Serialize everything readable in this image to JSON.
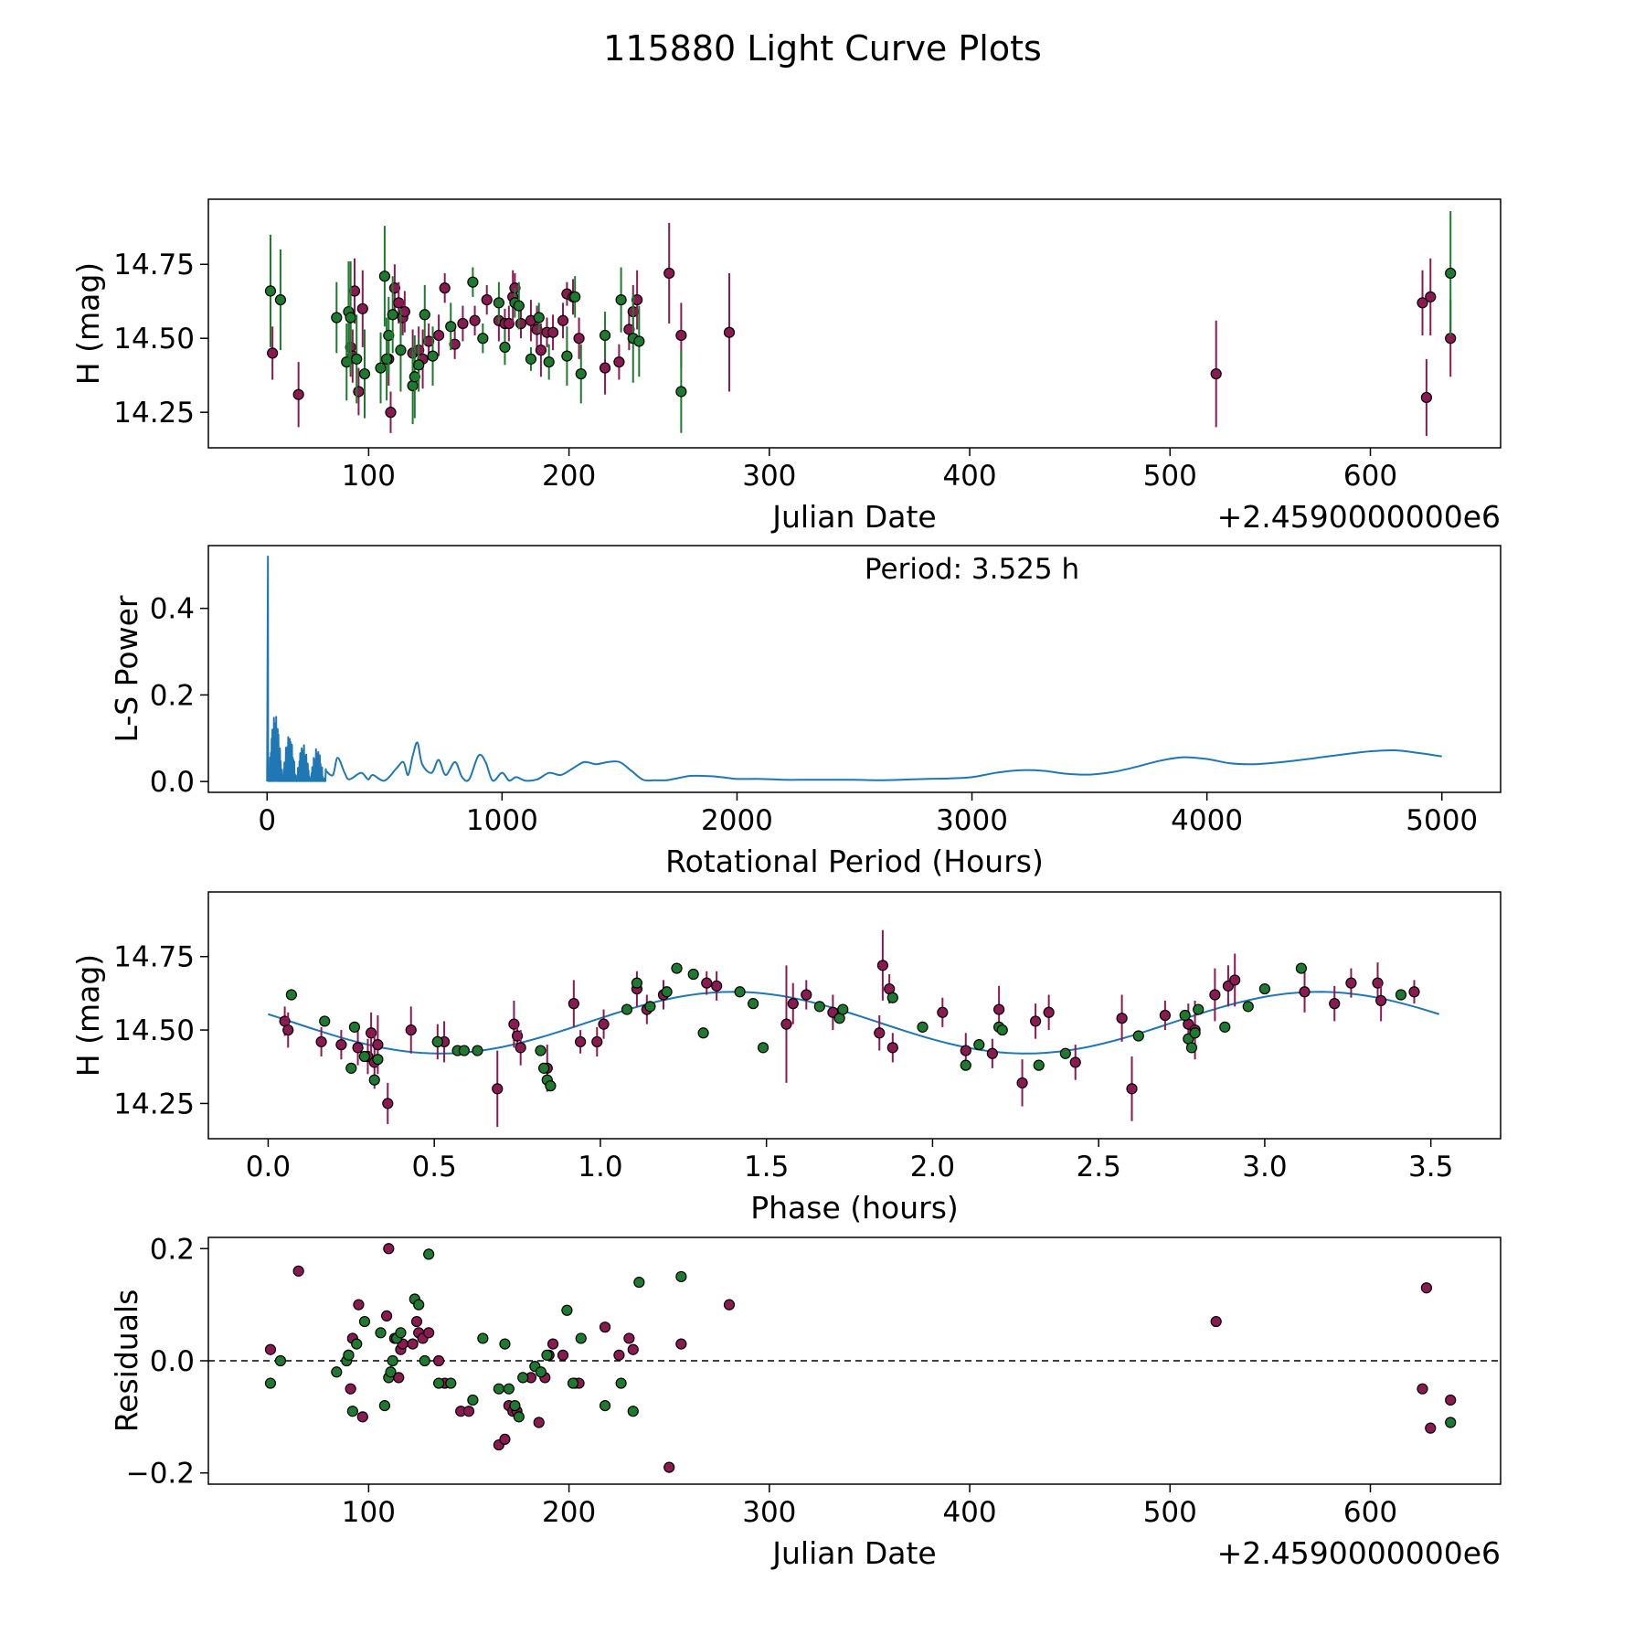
{
  "title": "115880 Light Curve Plots",
  "colors": {
    "series_a": "#8B1A52",
    "series_b": "#1E7A2E",
    "fit_line": "#1f77b4",
    "marker_edge": "#000000"
  },
  "chart_data": [
    {
      "id": "lightcurve",
      "type": "scatter",
      "xlabel": "Julian Date",
      "ylabel": "H (mag)",
      "offset_label": "+2.4590000000e6",
      "xlim": [
        20,
        665
      ],
      "ylim": [
        14.13,
        14.97
      ],
      "xticks": [
        100,
        200,
        300,
        400,
        500,
        600
      ],
      "yticks": [
        14.25,
        14.5,
        14.75
      ],
      "ytick_labels": [
        "14.25",
        "14.50",
        "14.75"
      ],
      "series": [
        {
          "name": "magenta",
          "color": "#8B1A52",
          "x": [
            52,
            65,
            91,
            92,
            93,
            95,
            97,
            110,
            111,
            113,
            115,
            117,
            118,
            122,
            125,
            127,
            130,
            135,
            138,
            143,
            147,
            153,
            159,
            165,
            168,
            170,
            172,
            173,
            176,
            181,
            184,
            186,
            189,
            192,
            197,
            199,
            202,
            205,
            218,
            225,
            230,
            232,
            234,
            250,
            256,
            280,
            523,
            626,
            628,
            630,
            640
          ],
          "y": [
            14.45,
            14.31,
            14.47,
            14.44,
            14.66,
            14.32,
            14.6,
            14.43,
            14.25,
            14.67,
            14.62,
            14.57,
            14.59,
            14.45,
            14.46,
            14.43,
            14.49,
            14.51,
            14.67,
            14.48,
            14.55,
            14.56,
            14.63,
            14.56,
            14.55,
            14.55,
            14.64,
            14.67,
            14.55,
            14.56,
            14.53,
            14.46,
            14.52,
            14.52,
            14.56,
            14.65,
            14.64,
            14.5,
            14.4,
            14.42,
            14.53,
            14.59,
            14.63,
            14.72,
            14.51,
            14.52,
            14.38,
            14.62,
            14.3,
            14.64,
            14.5
          ],
          "err": [
            0.09,
            0.11,
            0.1,
            0.09,
            0.11,
            0.08,
            0.13,
            0.09,
            0.07,
            0.08,
            0.07,
            0.06,
            0.07,
            0.08,
            0.08,
            0.1,
            0.06,
            0.07,
            0.05,
            0.05,
            0.06,
            0.05,
            0.05,
            0.07,
            0.05,
            0.06,
            0.09,
            0.05,
            0.05,
            0.07,
            0.08,
            0.09,
            0.05,
            0.06,
            0.06,
            0.04,
            0.06,
            0.07,
            0.09,
            0.06,
            0.07,
            0.09,
            0.1,
            0.17,
            0.11,
            0.2,
            0.18,
            0.11,
            0.13,
            0.13,
            0.13
          ]
        },
        {
          "name": "green",
          "color": "#1E7A2E",
          "x": [
            51,
            56,
            84,
            89,
            90,
            91,
            94,
            98,
            106,
            108,
            109,
            110,
            112,
            116,
            122,
            123,
            125,
            128,
            132,
            141,
            152,
            157,
            165,
            168,
            173,
            175,
            181,
            185,
            190,
            199,
            203,
            206,
            218,
            226,
            232,
            235,
            256,
            640
          ],
          "y": [
            14.66,
            14.63,
            14.57,
            14.42,
            14.59,
            14.57,
            14.43,
            14.38,
            14.4,
            14.71,
            14.43,
            14.51,
            14.58,
            14.46,
            14.34,
            14.37,
            14.41,
            14.58,
            14.44,
            14.54,
            14.69,
            14.5,
            14.62,
            14.47,
            14.62,
            14.61,
            14.43,
            14.57,
            14.42,
            14.44,
            14.64,
            14.38,
            14.51,
            14.63,
            14.5,
            14.49,
            14.32,
            14.72
          ],
          "err": [
            0.19,
            0.17,
            0.12,
            0.13,
            0.17,
            0.19,
            0.15,
            0.15,
            0.12,
            0.17,
            0.14,
            0.13,
            0.13,
            0.14,
            0.13,
            0.14,
            0.09,
            0.1,
            0.1,
            0.08,
            0.05,
            0.05,
            0.07,
            0.06,
            0.05,
            0.08,
            0.04,
            0.05,
            0.06,
            0.1,
            0.07,
            0.1,
            0.08,
            0.11,
            0.15,
            0.12,
            0.14,
            0.21
          ]
        }
      ]
    },
    {
      "id": "periodogram",
      "type": "line",
      "xlabel": "Rotational Period (Hours)",
      "ylabel": "L-S Power",
      "annotation": "Period: 3.525 h",
      "xlim": [
        -250,
        5250
      ],
      "ylim": [
        -0.025,
        0.545
      ],
      "xticks": [
        0,
        1000,
        2000,
        3000,
        4000,
        5000
      ],
      "yticks": [
        0.0,
        0.2,
        0.4
      ],
      "ytick_labels": [
        "0.0",
        "0.2",
        "0.4"
      ],
      "peak": {
        "x": 3.525,
        "y": 0.52
      },
      "line_x": [
        250,
        280,
        300,
        330,
        350,
        400,
        430,
        450,
        500,
        550,
        580,
        600,
        620,
        640,
        660,
        700,
        730,
        760,
        800,
        830,
        860,
        900,
        930,
        960,
        1000,
        1030,
        1060,
        1100,
        1150,
        1200,
        1250,
        1300,
        1350,
        1400,
        1450,
        1500,
        1550,
        1600,
        1650,
        1700,
        1750,
        1800,
        1850,
        1900,
        1950,
        2000,
        2100,
        2200,
        2300,
        2400,
        2500,
        2600,
        2700,
        2800,
        2900,
        3000,
        3100,
        3200,
        3300,
        3400,
        3500,
        3600,
        3700,
        3800,
        3900,
        4000,
        4100,
        4200,
        4300,
        4400,
        4500,
        4600,
        4700,
        4800,
        4900,
        5000
      ],
      "line_y": [
        0.025,
        0.015,
        0.055,
        0.02,
        0.005,
        0.02,
        0.005,
        0.015,
        0.002,
        0.03,
        0.045,
        0.015,
        0.06,
        0.09,
        0.04,
        0.02,
        0.05,
        0.015,
        0.045,
        0.01,
        0.005,
        0.06,
        0.045,
        0.002,
        0.02,
        0.002,
        0.01,
        0.002,
        0.005,
        0.02,
        0.015,
        0.03,
        0.045,
        0.04,
        0.045,
        0.045,
        0.025,
        0.004,
        0.003,
        0.003,
        0.008,
        0.013,
        0.013,
        0.012,
        0.009,
        0.006,
        0.006,
        0.004,
        0.004,
        0.004,
        0.004,
        0.003,
        0.004,
        0.006,
        0.007,
        0.01,
        0.02,
        0.026,
        0.025,
        0.018,
        0.016,
        0.022,
        0.034,
        0.048,
        0.056,
        0.052,
        0.042,
        0.04,
        0.044,
        0.05,
        0.057,
        0.064,
        0.07,
        0.072,
        0.066,
        0.058
      ]
    },
    {
      "id": "phased",
      "type": "scatter",
      "xlabel": "Phase (hours)",
      "ylabel": "H (mag)",
      "xlim": [
        -0.18,
        3.71
      ],
      "ylim": [
        14.13,
        14.97
      ],
      "xticks": [
        0.0,
        0.5,
        1.0,
        1.5,
        2.0,
        2.5,
        3.0,
        3.5
      ],
      "xtick_labels": [
        "0.0",
        "0.5",
        "1.0",
        "1.5",
        "2.0",
        "2.5",
        "3.0",
        "3.5"
      ],
      "yticks": [
        14.25,
        14.5,
        14.75
      ],
      "ytick_labels": [
        "14.25",
        "14.50",
        "14.75"
      ],
      "fit": {
        "period": 3.525,
        "mean": 14.525,
        "amplitude": 0.105,
        "phase_of_max": 1.4
      },
      "series": [
        {
          "name": "magenta",
          "color": "#8B1A52",
          "x": [
            0.05,
            0.06,
            0.16,
            0.22,
            0.27,
            0.3,
            0.31,
            0.32,
            0.33,
            0.36,
            0.43,
            0.51,
            0.53,
            0.69,
            0.74,
            0.75,
            0.76,
            0.84,
            0.92,
            0.94,
            0.99,
            1.01,
            1.11,
            1.14,
            1.19,
            1.32,
            1.35,
            1.56,
            1.58,
            1.62,
            1.7,
            1.84,
            1.85,
            1.87,
            1.88,
            2.03,
            2.1,
            2.18,
            2.2,
            2.27,
            2.31,
            2.35,
            2.43,
            2.57,
            2.6,
            2.7,
            2.77,
            2.79,
            2.85,
            2.89,
            2.91,
            3.12,
            3.21,
            3.26,
            3.34,
            3.35,
            3.45
          ],
          "y": [
            14.53,
            14.5,
            14.46,
            14.45,
            14.44,
            14.41,
            14.49,
            14.39,
            14.45,
            14.25,
            14.5,
            14.46,
            14.46,
            14.3,
            14.52,
            14.48,
            14.44,
            14.37,
            14.59,
            14.46,
            14.46,
            14.52,
            14.64,
            14.57,
            14.62,
            14.66,
            14.65,
            14.52,
            14.59,
            14.62,
            14.56,
            14.49,
            14.72,
            14.64,
            14.44,
            14.56,
            14.43,
            14.42,
            14.57,
            14.32,
            14.53,
            14.56,
            14.39,
            14.54,
            14.3,
            14.55,
            14.52,
            14.5,
            14.62,
            14.65,
            14.67,
            14.63,
            14.59,
            14.66,
            14.66,
            14.6,
            14.63
          ],
          "err": [
            0.05,
            0.06,
            0.05,
            0.05,
            0.06,
            0.06,
            0.07,
            0.09,
            0.1,
            0.07,
            0.08,
            0.06,
            0.07,
            0.13,
            0.08,
            0.05,
            0.06,
            0.08,
            0.08,
            0.04,
            0.05,
            0.05,
            0.06,
            0.05,
            0.05,
            0.04,
            0.05,
            0.2,
            0.07,
            0.05,
            0.06,
            0.06,
            0.12,
            0.05,
            0.05,
            0.05,
            0.06,
            0.05,
            0.08,
            0.08,
            0.06,
            0.06,
            0.06,
            0.08,
            0.11,
            0.05,
            0.07,
            0.1,
            0.09,
            0.07,
            0.09,
            0.07,
            0.06,
            0.05,
            0.07,
            0.07,
            0.04
          ]
        },
        {
          "name": "green",
          "color": "#1E7A2E",
          "x": [
            0.07,
            0.17,
            0.25,
            0.26,
            0.29,
            0.32,
            0.33,
            0.51,
            0.57,
            0.59,
            0.63,
            0.82,
            0.83,
            0.84,
            0.85,
            1.08,
            1.11,
            1.15,
            1.2,
            1.23,
            1.28,
            1.31,
            1.42,
            1.46,
            1.49,
            1.66,
            1.72,
            1.73,
            1.88,
            1.97,
            2.1,
            2.14,
            2.2,
            2.21,
            2.32,
            2.4,
            2.62,
            2.76,
            2.77,
            2.78,
            2.79,
            2.8,
            2.88,
            2.95,
            3.0,
            3.11,
            3.41
          ],
          "y": [
            14.62,
            14.53,
            14.37,
            14.51,
            14.41,
            14.33,
            14.4,
            14.46,
            14.43,
            14.43,
            14.43,
            14.43,
            14.37,
            14.33,
            14.31,
            14.57,
            14.66,
            14.58,
            14.63,
            14.71,
            14.69,
            14.49,
            14.63,
            14.59,
            14.44,
            14.58,
            14.54,
            14.57,
            14.61,
            14.51,
            14.38,
            14.45,
            14.51,
            14.5,
            14.38,
            14.42,
            14.48,
            14.55,
            14.47,
            14.44,
            14.49,
            14.57,
            14.51,
            14.58,
            14.64,
            14.71,
            14.62
          ]
        }
      ]
    },
    {
      "id": "residuals",
      "type": "scatter",
      "xlabel": "Julian Date",
      "ylabel": "Residuals",
      "offset_label": "+2.4590000000e6",
      "xlim": [
        20,
        665
      ],
      "ylim": [
        -0.22,
        0.22
      ],
      "xticks": [
        100,
        200,
        300,
        400,
        500,
        600
      ],
      "yticks": [
        -0.2,
        0.0,
        0.2
      ],
      "ytick_labels": [
        "−0.2",
        "0.0",
        "0.2"
      ],
      "reference_line": 0.0,
      "series": [
        {
          "name": "magenta",
          "color": "#8B1A52",
          "x": [
            51,
            65,
            90,
            91,
            92,
            95,
            97,
            109,
            110,
            113,
            115,
            116,
            117,
            122,
            124,
            125,
            127,
            130,
            135,
            138,
            146,
            150,
            165,
            168,
            170,
            172,
            174,
            181,
            185,
            188,
            190,
            192,
            197,
            203,
            205,
            218,
            225,
            230,
            232,
            250,
            256,
            280,
            523,
            626,
            628,
            630,
            640
          ],
          "y": [
            0.02,
            0.16,
            0.01,
            -0.05,
            0.04,
            0.1,
            -0.1,
            0.08,
            0.2,
            0.04,
            -0.03,
            0.02,
            0.03,
            0.03,
            0.07,
            0.05,
            0.04,
            0.05,
            0.0,
            -0.04,
            -0.09,
            -0.09,
            -0.15,
            -0.14,
            -0.08,
            -0.09,
            -0.09,
            -0.03,
            -0.11,
            -0.03,
            0.01,
            0.03,
            0.01,
            -0.04,
            -0.04,
            0.06,
            0.01,
            0.04,
            0.02,
            -0.19,
            0.03,
            0.1,
            0.07,
            -0.05,
            0.13,
            -0.12,
            -0.07
          ]
        },
        {
          "name": "green",
          "color": "#1E7A2E",
          "x": [
            51,
            56,
            84,
            89,
            90,
            92,
            94,
            98,
            106,
            108,
            110,
            111,
            112,
            114,
            116,
            123,
            125,
            128,
            130,
            135,
            141,
            152,
            157,
            165,
            168,
            170,
            173,
            175,
            177,
            183,
            186,
            189,
            199,
            202,
            206,
            218,
            226,
            232,
            235,
            256,
            640
          ],
          "y": [
            -0.04,
            0.0,
            -0.02,
            0.0,
            0.01,
            -0.09,
            0.03,
            0.07,
            0.05,
            -0.08,
            -0.03,
            -0.02,
            0.0,
            0.04,
            0.05,
            0.11,
            0.1,
            0.0,
            0.19,
            -0.04,
            -0.04,
            -0.07,
            0.04,
            -0.05,
            0.03,
            -0.05,
            -0.08,
            -0.1,
            -0.03,
            -0.01,
            -0.02,
            0.01,
            0.09,
            -0.04,
            0.04,
            -0.08,
            -0.04,
            -0.09,
            0.14,
            0.15,
            -0.11
          ]
        }
      ]
    }
  ]
}
